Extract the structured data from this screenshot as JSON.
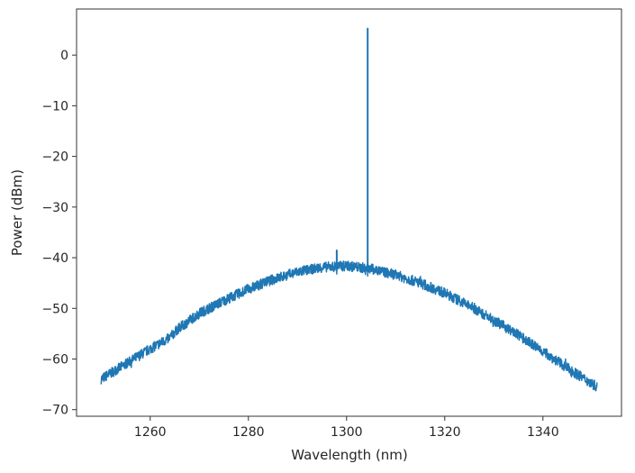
{
  "chart_data": {
    "type": "line",
    "title": "",
    "xlabel": "Wavelength (nm)",
    "ylabel": "Power (dBm)",
    "xlim": [
      1245,
      1356
    ],
    "ylim": [
      -71.3,
      9.1
    ],
    "xticks": [
      1260,
      1280,
      1300,
      1320,
      1340
    ],
    "yticks": [
      -70,
      -60,
      -50,
      -40,
      -30,
      -20,
      -10,
      0
    ],
    "grid": false,
    "color": "#1f77b4",
    "series": [
      {
        "x": [
          1250,
          1255,
          1260,
          1264,
          1265.5,
          1270,
          1275,
          1280,
          1285,
          1290,
          1295,
          1300,
          1305,
          1310,
          1315,
          1320,
          1325,
          1330,
          1335,
          1340,
          1345,
          1351
        ],
        "y": [
          -64,
          -61,
          -58,
          -55.8,
          -54.2,
          -51,
          -48.5,
          -46.2,
          -44.3,
          -42.8,
          -41.9,
          -41.6,
          -42.2,
          -43.4,
          -45,
          -47,
          -49.5,
          -52.3,
          -55.3,
          -58.5,
          -61.8,
          -65.5
        ],
        "noise_db": 2
      }
    ],
    "peaks": [
      {
        "x": 1304.3,
        "y": 5.3
      },
      {
        "x": 1298,
        "y": -38.5
      }
    ]
  }
}
